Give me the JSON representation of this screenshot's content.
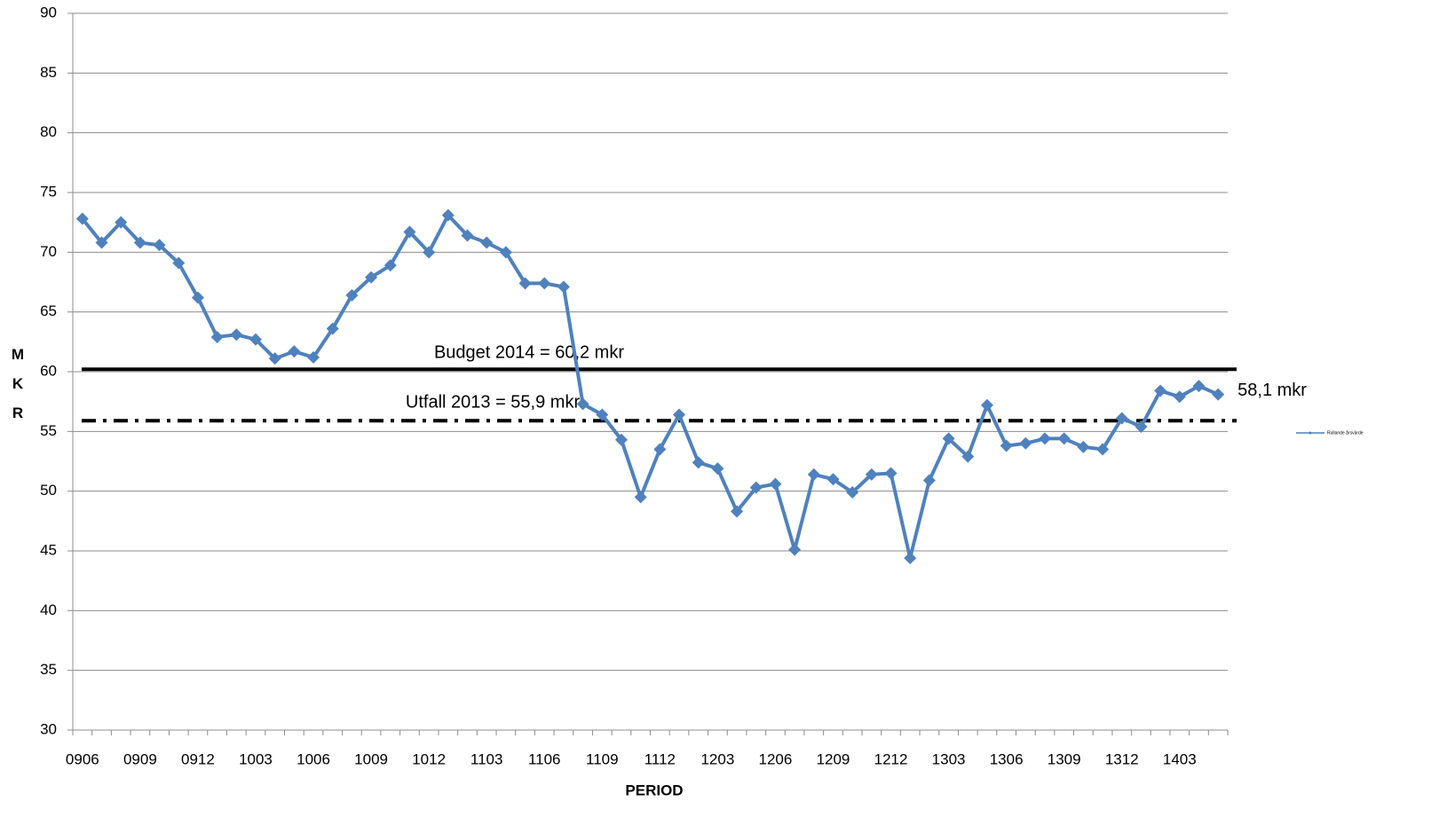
{
  "chart_data": {
    "type": "line",
    "x_label": "PERIOD",
    "y_label": "MKR",
    "categories": [
      "0906",
      null,
      null,
      "0909",
      null,
      null,
      "0912",
      null,
      null,
      "1003",
      null,
      null,
      "1006",
      null,
      null,
      "1009",
      null,
      null,
      "1012",
      null,
      null,
      "1103",
      null,
      null,
      "1106",
      null,
      null,
      "1109",
      null,
      null,
      "1112",
      null,
      null,
      "1203",
      null,
      null,
      "1206",
      null,
      null,
      "1209",
      null,
      null,
      "1212",
      null,
      null,
      "1303",
      null,
      null,
      "1306",
      null,
      null,
      "1309",
      null,
      null,
      "1312",
      null,
      null,
      "1403",
      null,
      null
    ],
    "series": [
      {
        "name": "Rullande årsvärde",
        "color": "#4f81bd",
        "values": [
          72.8,
          70.8,
          72.5,
          70.8,
          70.6,
          69.1,
          66.2,
          62.9,
          63.1,
          62.7,
          61.1,
          61.7,
          61.2,
          63.6,
          66.4,
          67.9,
          68.9,
          71.7,
          70.0,
          73.1,
          71.4,
          70.8,
          70.0,
          67.4,
          67.4,
          67.1,
          57.3,
          56.4,
          54.3,
          49.5,
          53.5,
          56.4,
          52.4,
          51.9,
          48.3,
          50.3,
          50.6,
          45.1,
          51.4,
          51.0,
          49.9,
          51.4,
          51.5,
          44.4,
          50.9,
          54.4,
          52.9,
          57.2,
          53.8,
          54.0,
          54.4,
          54.4,
          53.7,
          53.5,
          56.1,
          55.4,
          58.4,
          57.9,
          58.8,
          58.1
        ],
        "value_labels": [
          null,
          null,
          null,
          null,
          null,
          null,
          null,
          null,
          null,
          null,
          null,
          null,
          null,
          null,
          null,
          null,
          null,
          null,
          null,
          null,
          null,
          null,
          null,
          null,
          null,
          null,
          null,
          null,
          null,
          null,
          null,
          null,
          null,
          null,
          null,
          null,
          null,
          null,
          null,
          null,
          null,
          null,
          null,
          null,
          null,
          null,
          null,
          null,
          null,
          null,
          null,
          null,
          null,
          null,
          null,
          null,
          null,
          null,
          null,
          "58,1 mkr"
        ]
      }
    ],
    "reference_lines": [
      {
        "label": "Budget 2014 = 60,2 mkr",
        "value": 60.2,
        "style": "solid",
        "color": "#000000"
      },
      {
        "label": "Utfall 2013 = 55,9 mkr",
        "value": 55.9,
        "style": "dashdot",
        "color": "#000000"
      }
    ],
    "ylim": [
      30,
      90
    ],
    "yticks": [
      30,
      35,
      40,
      45,
      50,
      55,
      60,
      65,
      70,
      75,
      80,
      85,
      90
    ],
    "grid": true,
    "legend": "right"
  }
}
